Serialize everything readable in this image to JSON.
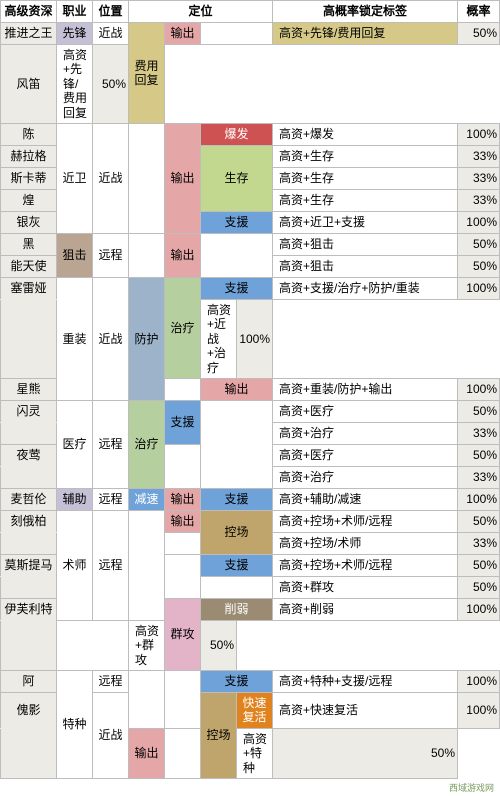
{
  "colors": {
    "header_bg": "#ffffff",
    "op_bg": "#ecebe5",
    "class_xianfeng": "#c5c0d5",
    "class_jinwei": "#ffffff",
    "class_juji": "#b9a591",
    "class_zhongzhuang": "#ffffff",
    "class_yiliao": "#ffffff",
    "class_fuzhu": "#c5c0d5",
    "class_shushi": "#ffffff",
    "class_tezhong": "#ffffff",
    "range_jinzhan": "#ffffff",
    "range_yuancheng": "#ffffff",
    "pos_feiyong": "#d6c987",
    "pos_shuchu": "#e4a6a6",
    "pos_baofa": "#cf5252",
    "pos_shengcun": "#c2d88f",
    "pos_zhiyuan": "#6fa2d9",
    "pos_fanghu": "#9db3c9",
    "pos_zhiliao": "#b6cf9f",
    "pos_jiansu": "#6fa2d9",
    "pos_kongchang": "#bfa46b",
    "pos_qungong": "#e3b4c8",
    "pos_xueruo": "#9a8b72",
    "pos_kuaisu": "#e0831f",
    "pos_white": "#ffffff",
    "baofa_text": "#ffffff",
    "qungong_bg": "#e3b4c8",
    "tag_bg": "#ffffff",
    "tag_highlight": "#d6c987",
    "rate_bg": "#ecebe5"
  },
  "headers": {
    "operator": "高级资深",
    "class": "职业",
    "position": "位置",
    "positioning": "定位",
    "tags": "高概率锁定标签",
    "rate": "概率"
  },
  "watermark": "西域游戏网",
  "ops": [
    {
      "name": "推进之王",
      "cls": "先锋",
      "cbg": "class_xianfeng",
      "rng": "近战",
      "p1": "费用回复",
      "p1bg": "pos_feiyong",
      "p1rs": 2,
      "p2": "输出",
      "p2bg": "pos_shuchu",
      "p3": "",
      "p3bg": "pos_white",
      "tag": "高资+先锋/费用回复",
      "tbg": "tag_highlight",
      "rate": "50%"
    },
    {
      "name": "风笛",
      "tag": "高资+先锋/费用回复",
      "rate": "50%"
    },
    {
      "name": "陈",
      "cls": "近卫",
      "cbg": "class_jinwei",
      "crs": 5,
      "rng": "近战",
      "rrs": 5,
      "p1": "",
      "p1bg": "pos_white",
      "prs": 5,
      "p2": "输出",
      "p2bg": "pos_shuchu",
      "p2rs": 5,
      "p3": "爆发",
      "p3bg": "pos_baofa",
      "p3tc": "baofa_text",
      "tag": "高资+爆发",
      "rate": "100%"
    },
    {
      "name": "赫拉格",
      "p3": "生存",
      "p3bg": "pos_shengcun",
      "p3rs": 3,
      "tag": "高资+生存",
      "rate": "33%"
    },
    {
      "name": "斯卡蒂",
      "tag": "高资+生存",
      "rate": "33%"
    },
    {
      "name": "煌",
      "tag": "高资+生存",
      "rate": "33%"
    },
    {
      "name": "银灰",
      "p3": "支援",
      "p3bg": "pos_zhiyuan",
      "tag": "高资+近卫+支援",
      "rate": "100%"
    },
    {
      "name": "黑",
      "cls": "狙击",
      "cbg": "class_juji",
      "crs": 2,
      "rng": "远程",
      "rrs": 2,
      "p1": "",
      "p1bg": "pos_white",
      "prs": 2,
      "p2": "输出",
      "p2bg": "pos_shuchu",
      "p2rs": 2,
      "p3": "",
      "p3bg": "pos_white",
      "p3rs": 2,
      "tag": "高资+狙击",
      "rate": "50%"
    },
    {
      "name": "能天使",
      "tag": "高资+狙击",
      "rate": "50%"
    },
    {
      "name": "塞雷娅",
      "cls": "重装",
      "cbg": "class_zhongzhuang",
      "crs": 3,
      "rng": "近战",
      "rrs": 3,
      "p1": "防护",
      "p1bg": "pos_fanghu",
      "prs": 3,
      "p2": "治疗",
      "p2bg": "pos_zhiliao",
      "p2rs": 2,
      "p3": "支援",
      "p3bg": "pos_zhiyuan",
      "tag": "高资+支援/治疗+防护/重装",
      "rate": "100%"
    },
    {
      "name": "",
      "tag": "高资+近战+治疗",
      "rate": "100%"
    },
    {
      "name": "星熊",
      "p2": "",
      "p2bg": "pos_white",
      "p3": "输出",
      "p3bg": "pos_shuchu",
      "tag": "高资+重装/防护+输出",
      "rate": "100%"
    },
    {
      "name": "闪灵",
      "cls": "医疗",
      "cbg": "class_yiliao",
      "crs": 4,
      "rng": "远程",
      "rrs": 4,
      "p1": "治疗",
      "p1bg": "pos_zhiliao",
      "prs": 4,
      "p2": "支援",
      "p2bg": "pos_zhiyuan",
      "p2rs": 2,
      "p3": "",
      "p3bg": "pos_white",
      "p3rs": 4,
      "tag": "高资+医疗",
      "rate": "50%"
    },
    {
      "name": "",
      "tag": "高资+治疗",
      "rate": "33%"
    },
    {
      "name": "夜莺",
      "p2": "",
      "p2bg": "pos_white",
      "p2rs": 2,
      "tag": "高资+医疗",
      "rate": "50%"
    },
    {
      "name": "",
      "tag": "高资+治疗",
      "rate": "33%"
    },
    {
      "name": "麦哲伦",
      "cls": "辅助",
      "cbg": "class_fuzhu",
      "rng": "远程",
      "p1": "减速",
      "p1bg": "pos_jiansu",
      "p1tc": "baofa_text",
      "p2": "输出",
      "p2bg": "pos_shuchu",
      "p3": "支援",
      "p3bg": "pos_zhiyuan",
      "tag": "高资+辅助/减速",
      "rate": "100%"
    },
    {
      "name": "刻俄柏",
      "cls": "术师",
      "cbg": "class_shushi",
      "crs": 5,
      "rng": "远程",
      "rrs": 5,
      "p1": "",
      "p1bg": "pos_white",
      "prs": 5,
      "p2": "输出",
      "p2bg": "pos_shuchu",
      "p3": "控场",
      "p3bg": "pos_kongchang",
      "p3rs": 2,
      "tag": "高资+控场+术师/远程",
      "rate": "50%"
    },
    {
      "name": "",
      "p2": "",
      "p2bg": "pos_white",
      "tag": "高资+控场/术师",
      "rate": "33%"
    },
    {
      "name": "莫斯提马",
      "p2": "",
      "p2bg": "pos_white",
      "p2rs": 2,
      "p3": "支援",
      "p3bg": "pos_zhiyuan",
      "tag": "高资+控场+术师/远程",
      "rate": "50%"
    },
    {
      "name": "",
      "p3": "",
      "p3bg": "pos_white",
      "tag": "高资+群攻",
      "rate": "50%"
    },
    {
      "name": "伊芙利特",
      "p2": "群攻",
      "p2bg": "pos_qungong",
      "p2rs": 2,
      "p2sc": -2,
      "p3": "削弱",
      "p3bg": "pos_xueruo",
      "p3tc": "baofa_text",
      "tag": "高资+削弱",
      "rate": "100%"
    },
    {
      "name": "",
      "p3": "",
      "p3bg": "pos_white",
      "tag": "高资+群攻",
      "rate": "50%"
    },
    {
      "name": "阿",
      "cls": "特种",
      "cbg": "class_tezhong",
      "crs": 3,
      "rng": "远程",
      "p1": "",
      "p1bg": "pos_white",
      "prs": 2,
      "p2": "",
      "p2bg": "pos_white",
      "p2rs": 2,
      "p3": "支援",
      "p3bg": "pos_zhiyuan",
      "tag": "高资+特种+支援/远程",
      "rate": "100%"
    },
    {
      "name": "傀影",
      "rng": "近战",
      "rrs": 2,
      "p3": "控场",
      "p3bg": "pos_kongchang",
      "p3rs": 2,
      "p3b": "快速复活",
      "p3bbg": "pos_kuaisu",
      "p3btc": "baofa_text",
      "tag": "高资+快速复活",
      "rate": "100%"
    },
    {
      "name": "",
      "p1": "输出",
      "p1bg": "pos_shuchu",
      "p2": "",
      "p2bg": "pos_white",
      "tag": "高资+特种",
      "rate": "50%"
    }
  ]
}
